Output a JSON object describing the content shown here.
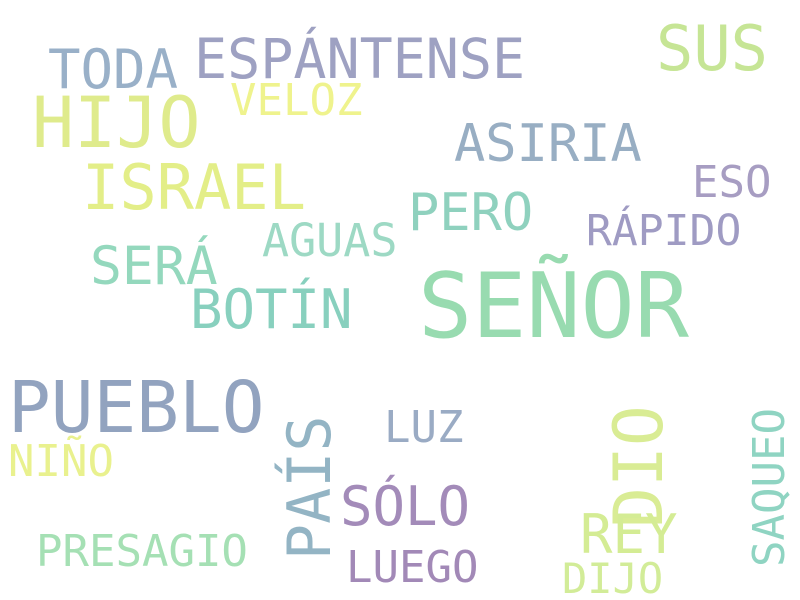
{
  "words": [
    {
      "text": "SEÑOR",
      "color": "#98dbb0"
    },
    {
      "text": "PUEBLO",
      "color": "#92a3bf"
    },
    {
      "text": "HIJO",
      "color": "#dfeb8c"
    },
    {
      "text": "ISRAEL",
      "color": "#e3ee88"
    },
    {
      "text": "ESPÁNTENSE",
      "color": "#9ea1c2"
    },
    {
      "text": "DIO",
      "color": "#d9ec94"
    },
    {
      "text": "PAÍS",
      "color": "#93b4c4"
    },
    {
      "text": "ASIRIA",
      "color": "#98aec3"
    },
    {
      "text": "SUS",
      "color": "#c6e595"
    },
    {
      "text": "TODA",
      "color": "#99b0c8"
    },
    {
      "text": "BOTÍN",
      "color": "#88d0be"
    },
    {
      "text": "SÓLO",
      "color": "#a38bb9"
    },
    {
      "text": "REY",
      "color": "#d4ec94"
    },
    {
      "text": "SERÁ",
      "color": "#94d8bd"
    },
    {
      "text": "PERO",
      "color": "#8fd1be"
    },
    {
      "text": "AGUAS",
      "color": "#9dd9c4"
    },
    {
      "text": "RÁPIDO",
      "color": "#9f9bc3"
    },
    {
      "text": "ESO",
      "color": "#a79dc2"
    },
    {
      "text": "PRESAGIO",
      "color": "#a5e0b4"
    },
    {
      "text": "LUEGO",
      "color": "#a289b7"
    },
    {
      "text": "LUZ",
      "color": "#9aabc4"
    },
    {
      "text": "SAQUEO",
      "color": "#8fd4c2"
    },
    {
      "text": "VELOZ",
      "color": "#eff38d"
    },
    {
      "text": "NIÑO",
      "color": "#e9f18e"
    },
    {
      "text": "DIJO",
      "color": "#d2ec98"
    }
  ]
}
